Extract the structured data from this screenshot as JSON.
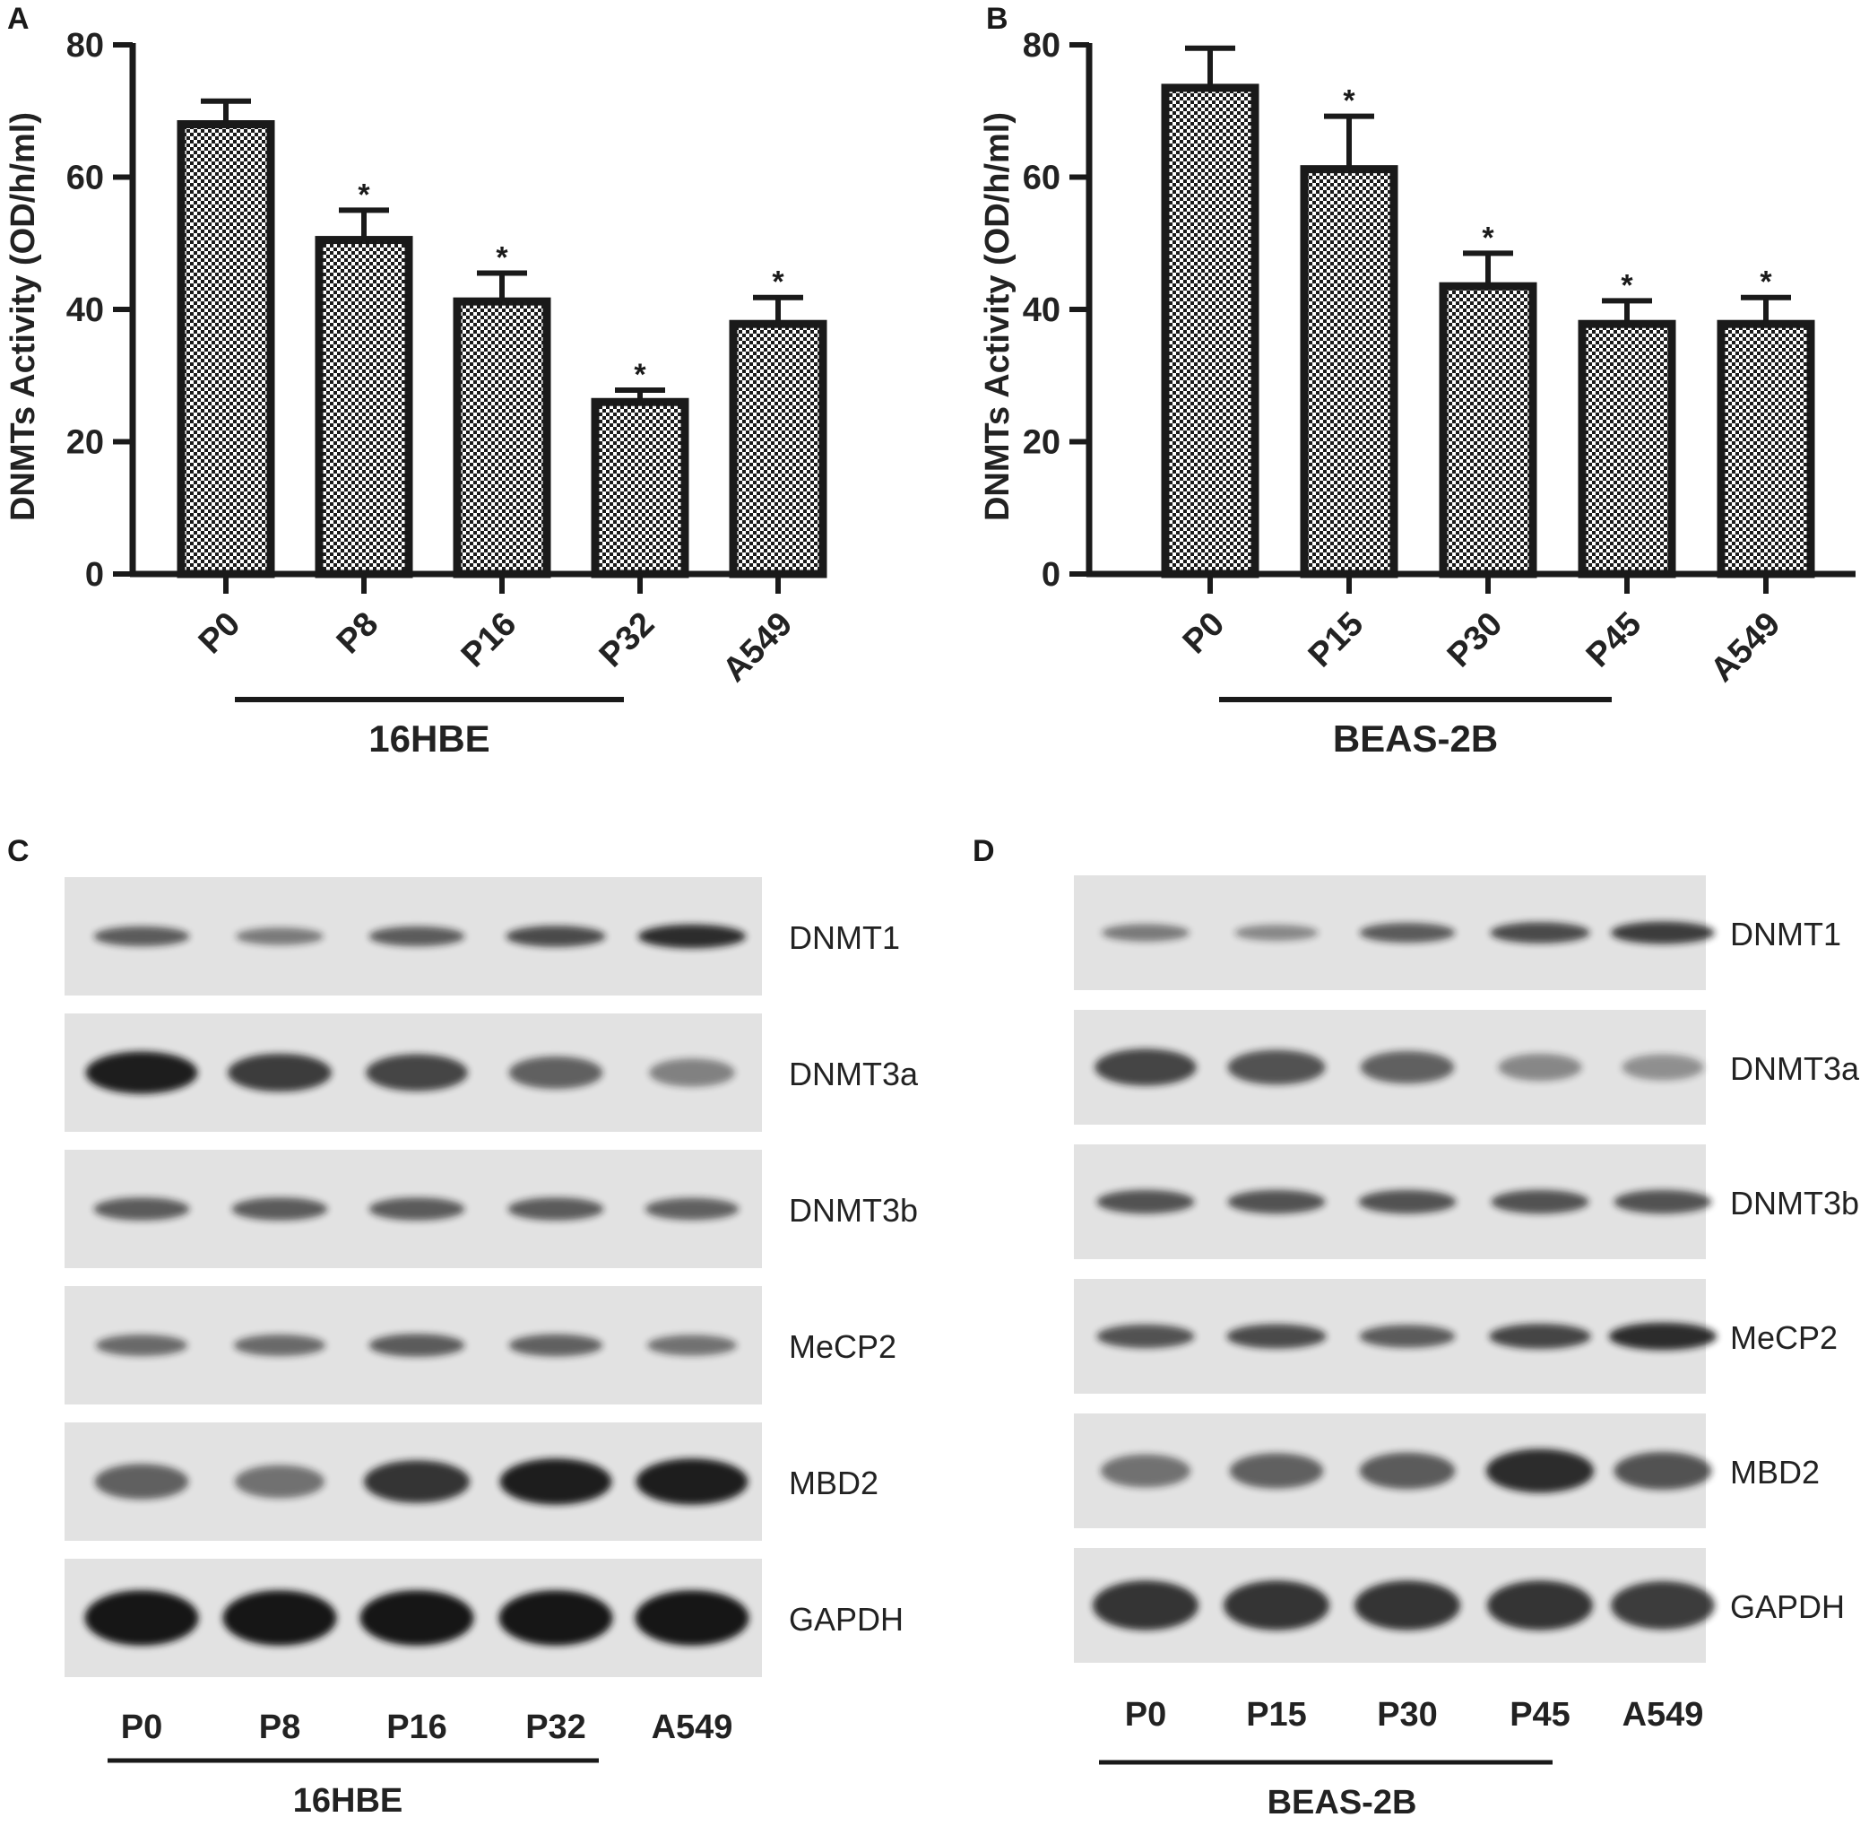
{
  "colors": {
    "ink": "#1a1a1a",
    "bar_pattern_dark": "#1a1a1a",
    "bar_pattern_light": "#ffffff",
    "blot_background": "#e2e2e2",
    "band": "#141414"
  },
  "chart_data": [
    {
      "panel": "A",
      "type": "bar",
      "ylabel": "DNMTs Activity (OD/h/ml)",
      "ylim": [
        0,
        80
      ],
      "yticks": [
        0,
        20,
        40,
        60,
        80
      ],
      "categories": [
        "P0",
        "P8",
        "P16",
        "P32",
        "A549"
      ],
      "values": [
        68,
        50.5,
        41.2,
        26,
        37.8
      ],
      "errors": [
        3.5,
        4.5,
        4.3,
        1.8,
        4
      ],
      "significance": [
        "",
        "*",
        "*",
        "*",
        "*"
      ],
      "group_label": "16HBE",
      "group_span": [
        "P0",
        "P32"
      ],
      "grid": false,
      "pattern": "checkerboard"
    },
    {
      "panel": "B",
      "type": "bar",
      "ylabel": "DNMTs Activity (OD/h/ml)",
      "ylim": [
        0,
        80
      ],
      "yticks": [
        0,
        20,
        40,
        60,
        80
      ],
      "categories": [
        "P0",
        "P15",
        "P30",
        "P45",
        "A549"
      ],
      "values": [
        73.5,
        61.2,
        43.5,
        37.8,
        37.8
      ],
      "errors": [
        6,
        8,
        5,
        3.5,
        4
      ],
      "significance": [
        "",
        "*",
        "*",
        "*",
        "*"
      ],
      "group_label": "BEAS-2B",
      "group_span": [
        "P0",
        "P45"
      ],
      "grid": false,
      "pattern": "checkerboard"
    }
  ],
  "blots": [
    {
      "panel": "C",
      "lanes": [
        "P0",
        "P8",
        "P16",
        "P32",
        "A549"
      ],
      "group_label": "16HBE",
      "rows": [
        {
          "protein": "DNMT1",
          "intensity": [
            0.55,
            0.35,
            0.55,
            0.65,
            0.85
          ]
        },
        {
          "protein": "DNMT3a",
          "intensity": [
            0.95,
            0.75,
            0.7,
            0.5,
            0.3
          ]
        },
        {
          "protein": "DNMT3b",
          "intensity": [
            0.55,
            0.55,
            0.55,
            0.55,
            0.5
          ]
        },
        {
          "protein": "MeCP2",
          "intensity": [
            0.45,
            0.45,
            0.55,
            0.5,
            0.4
          ]
        },
        {
          "protein": "MBD2",
          "intensity": [
            0.5,
            0.4,
            0.8,
            0.95,
            0.95
          ]
        },
        {
          "protein": "GAPDH",
          "intensity": [
            1.0,
            1.0,
            1.0,
            1.0,
            1.0
          ]
        }
      ]
    },
    {
      "panel": "D",
      "lanes": [
        "P0",
        "P15",
        "P30",
        "P45",
        "A549"
      ],
      "group_label": "BEAS-2B",
      "rows": [
        {
          "protein": "DNMT1",
          "intensity": [
            0.35,
            0.25,
            0.55,
            0.65,
            0.75
          ]
        },
        {
          "protein": "DNMT3a",
          "intensity": [
            0.7,
            0.6,
            0.5,
            0.25,
            0.2
          ]
        },
        {
          "protein": "DNMT3b",
          "intensity": [
            0.6,
            0.6,
            0.6,
            0.6,
            0.6
          ]
        },
        {
          "protein": "MeCP2",
          "intensity": [
            0.6,
            0.65,
            0.55,
            0.7,
            0.85
          ]
        },
        {
          "protein": "MBD2",
          "intensity": [
            0.4,
            0.5,
            0.55,
            0.85,
            0.6
          ]
        },
        {
          "protein": "GAPDH",
          "intensity": [
            0.8,
            0.8,
            0.8,
            0.8,
            0.75
          ]
        }
      ]
    }
  ]
}
